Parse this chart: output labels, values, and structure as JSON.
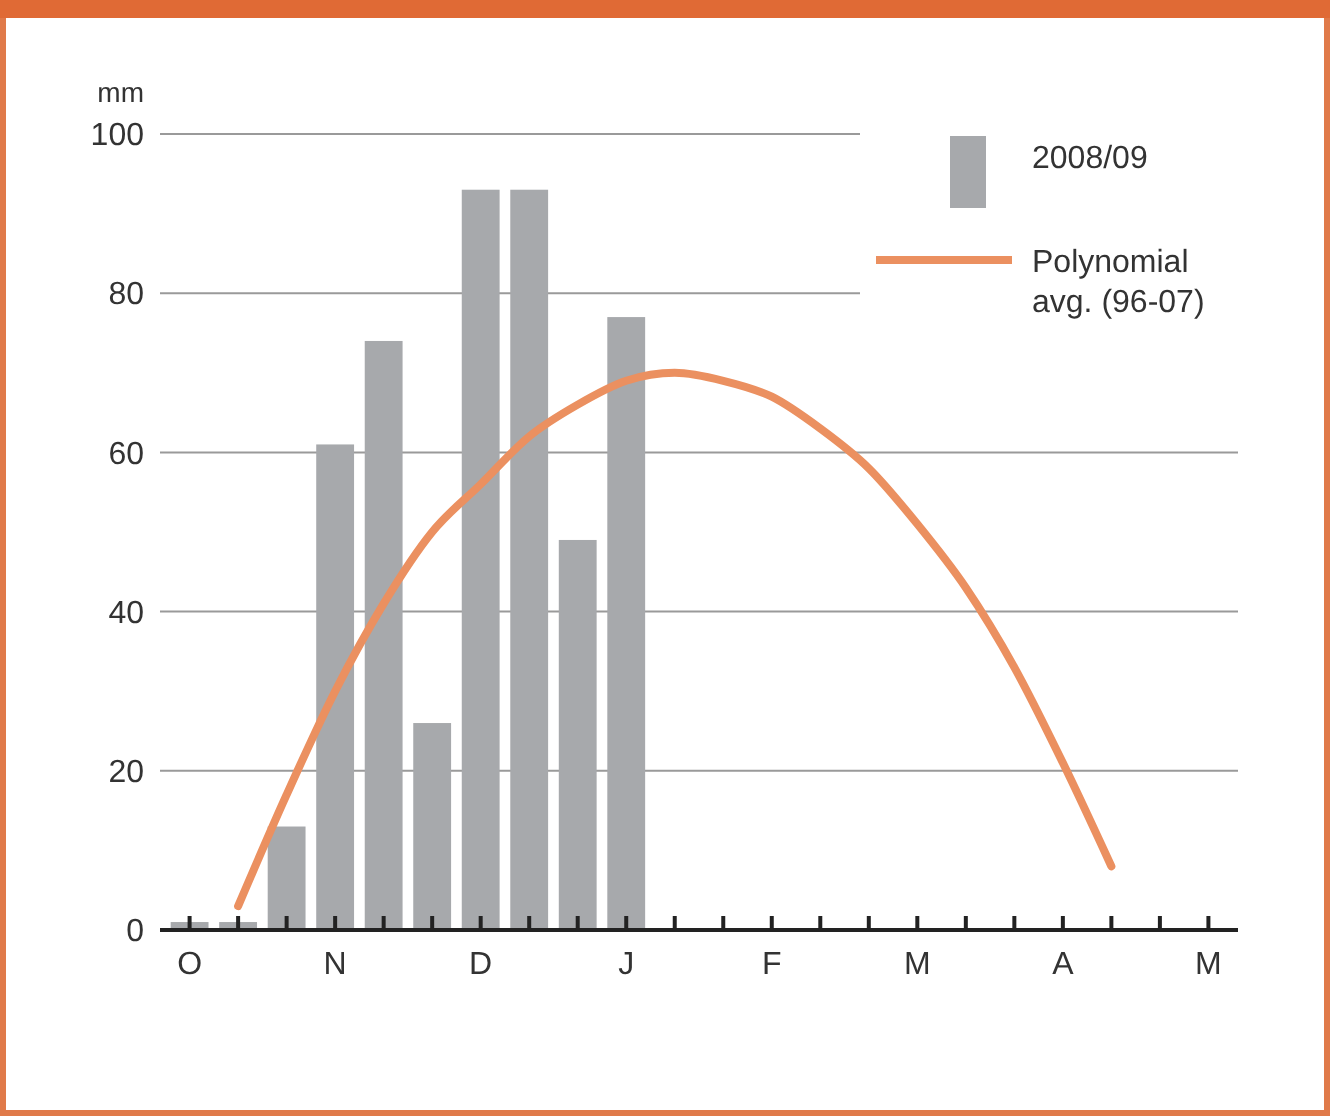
{
  "chart_data": {
    "type": "bar",
    "ylabel": "mm",
    "categories": [
      "O",
      null,
      null,
      "N",
      null,
      null,
      "D",
      null,
      null,
      "J",
      null,
      null,
      "F",
      null,
      null,
      "M",
      null,
      null,
      "A",
      null,
      null,
      "M"
    ],
    "series": [
      {
        "name": "2008/09",
        "color": "#a7a9ac",
        "values": [
          1,
          1,
          13,
          61,
          74,
          26,
          93,
          93,
          49,
          77,
          null,
          null,
          null,
          null,
          null,
          null,
          null,
          null,
          null,
          null,
          null,
          null
        ]
      },
      {
        "name": "Polynomial avg. (96-07)",
        "type": "line",
        "color": "#eb9060",
        "values": [
          null,
          3,
          17,
          30,
          41,
          50,
          56,
          62,
          66,
          69,
          70,
          69,
          67,
          63,
          58,
          51,
          43,
          33,
          21,
          8,
          null,
          null
        ]
      }
    ],
    "ylim": [
      0,
      100
    ],
    "yticks": [
      0,
      20,
      40,
      60,
      80,
      100
    ],
    "grid": "y",
    "legend": "top right",
    "marker": "none",
    "line_style": "solid"
  }
}
